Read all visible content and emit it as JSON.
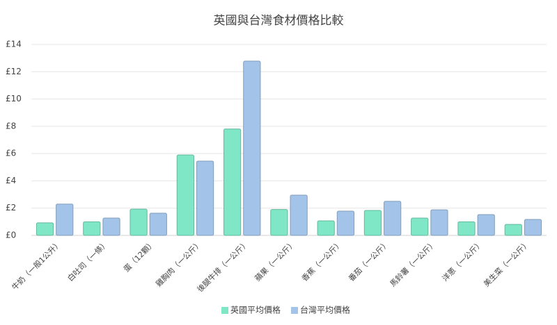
{
  "chart_data": {
    "type": "bar",
    "title": "英國與台灣食材價格比較",
    "categories": [
      "牛奶（一般1公升）",
      "白吐司（一條）",
      "蛋（12顆）",
      "雞胸肉（一公斤）",
      "後腿牛排（一公斤）",
      "蘋果（一公斤）",
      "香蕉（一公斤）",
      "番茄（一公斤）",
      "馬鈴薯（一公斤）",
      "洋蔥（一公斤）",
      "美生菜（一公斤）"
    ],
    "series": [
      {
        "name": "英國平均價格",
        "color": "#7fe6c6",
        "values": [
          0.92,
          1.0,
          1.93,
          5.9,
          7.8,
          1.9,
          1.07,
          1.83,
          1.27,
          1.0,
          0.81
        ]
      },
      {
        "name": "台灣平均價格",
        "color": "#a3c4e8",
        "values": [
          2.3,
          1.27,
          1.63,
          5.45,
          12.78,
          2.95,
          1.78,
          2.5,
          1.88,
          1.53,
          1.17
        ]
      }
    ],
    "ylim": [
      0,
      14
    ],
    "yticks": [
      {
        "value": 0,
        "label": "£0"
      },
      {
        "value": 2,
        "label": "£2"
      },
      {
        "value": 4,
        "label": "£4"
      },
      {
        "value": 6,
        "label": "£6"
      },
      {
        "value": 8,
        "label": "£8"
      },
      {
        "value": 10,
        "label": "£10"
      },
      {
        "value": 12,
        "label": "£12"
      },
      {
        "value": 14,
        "label": "£14"
      }
    ],
    "grid": true,
    "legend": "bottom"
  }
}
